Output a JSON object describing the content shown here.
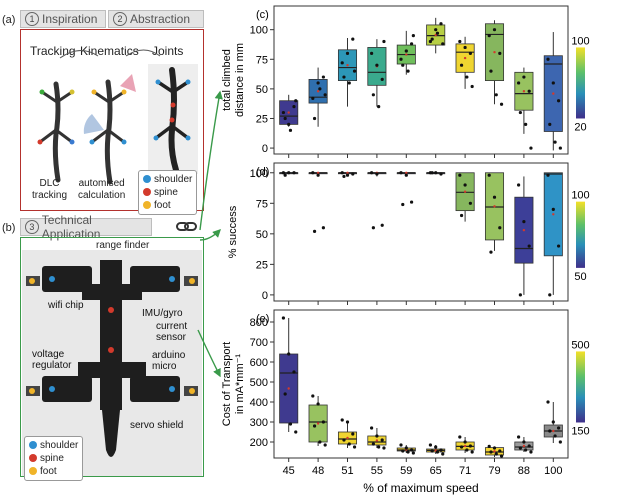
{
  "colors": {
    "shoulder": "#2f8fd0",
    "spine": "#d33a2c",
    "foot": "#f0b429",
    "frame_red": "#b3312d",
    "frame_green": "#3a9a4a",
    "palette": [
      "#3f3a8f",
      "#2f6fae",
      "#2c97b8",
      "#3aaa8d",
      "#6fbf5c",
      "#b7cf45",
      "#efd531",
      "#86b65e",
      "#98c260",
      "#3d66b0",
      "#2f93c6"
    ]
  },
  "left": {
    "panel_a": "(a)",
    "panel_b": "(b)",
    "step1_num": "1",
    "step1": "Inspiration",
    "step2_num": "2",
    "step2": "Abstraction",
    "step3_num": "3",
    "step3": "Technical Application",
    "tracking": "Tracking",
    "kinematics": "Kinematics",
    "joints": "Joints",
    "dlc": "DLC\ntracking",
    "automised": "automised\ncalculation",
    "legend_a": [
      "shoulder",
      "spine",
      "foot"
    ],
    "legend_b": [
      "shoulder",
      "spine",
      "foot"
    ],
    "range_finder": "range finder",
    "wifi_chip": "wifi chip",
    "imu": "IMU/gyro",
    "current_sensor": "current\nsensor",
    "voltage_regulator": "voltage\nregulator",
    "arduino": "arduino\nmicro",
    "servo_shield": "servo shield"
  },
  "x_label": "% of maximum speed",
  "chart_data": [
    {
      "panel": "(c)",
      "type": "box",
      "ylabel": "total climbed\ndistance in mm",
      "categories": [
        "45",
        "48",
        "51",
        "55",
        "59",
        "65",
        "71",
        "79",
        "88",
        "100"
      ],
      "ylim": [
        -5,
        120
      ],
      "yticks": [
        0,
        25,
        50,
        75,
        100
      ],
      "boxes": [
        {
          "q1": 20,
          "med": 27,
          "q3": 40,
          "wlo": 18,
          "whi": 45
        },
        {
          "q1": 38,
          "med": 43,
          "q3": 58,
          "wlo": 18,
          "whi": 68
        },
        {
          "q1": 57,
          "med": 68,
          "q3": 83,
          "wlo": 35,
          "whi": 93
        },
        {
          "q1": 53,
          "med": 64,
          "q3": 85,
          "wlo": 35,
          "whi": 92
        },
        {
          "q1": 71,
          "med": 79,
          "q3": 87,
          "wlo": 62,
          "whi": 99
        },
        {
          "q1": 87,
          "med": 95,
          "q3": 104,
          "wlo": 80,
          "whi": 110
        },
        {
          "q1": 64,
          "med": 81,
          "q3": 88,
          "wlo": 50,
          "whi": 94
        },
        {
          "q1": 57,
          "med": 96,
          "q3": 105,
          "wlo": 37,
          "whi": 108
        },
        {
          "q1": 32,
          "med": 46,
          "q3": 64,
          "wlo": 12,
          "whi": 68
        },
        {
          "q1": 14,
          "med": 71,
          "q3": 78,
          "wlo": -2,
          "whi": 98
        }
      ],
      "points": [
        [
          30,
          20,
          35,
          25,
          15,
          40
        ],
        [
          42,
          55,
          60,
          25,
          50,
          45
        ],
        [
          72,
          80,
          92,
          60,
          55,
          65
        ],
        [
          80,
          70,
          58,
          45,
          35,
          90
        ],
        [
          75,
          82,
          88,
          70,
          65,
          95
        ],
        [
          90,
          100,
          105,
          92,
          97,
          88
        ],
        [
          90,
          85,
          80,
          70,
          60,
          52
        ],
        [
          95,
          100,
          80,
          65,
          45,
          37
        ],
        [
          55,
          60,
          48,
          30,
          20,
          0
        ],
        [
          75,
          55,
          40,
          20,
          5,
          0
        ]
      ],
      "colorbar": {
        "max": "100",
        "min": "20"
      }
    },
    {
      "panel": "(d)",
      "type": "box",
      "ylabel": "% success",
      "categories": [
        "45",
        "48",
        "51",
        "55",
        "59",
        "65",
        "71",
        "79",
        "88",
        "100"
      ],
      "ylim": [
        -5,
        108
      ],
      "yticks": [
        0,
        25,
        50,
        75,
        100
      ],
      "boxes": [
        {
          "q1": 100,
          "med": 100,
          "q3": 100,
          "wlo": 100,
          "whi": 100
        },
        {
          "q1": 100,
          "med": 100,
          "q3": 100,
          "wlo": 98,
          "whi": 100
        },
        {
          "q1": 100,
          "med": 100,
          "q3": 100,
          "wlo": 97,
          "whi": 100
        },
        {
          "q1": 100,
          "med": 100,
          "q3": 100,
          "wlo": 97,
          "whi": 100
        },
        {
          "q1": 100,
          "med": 100,
          "q3": 100,
          "wlo": 100,
          "whi": 100
        },
        {
          "q1": 100,
          "med": 100,
          "q3": 100,
          "wlo": 100,
          "whi": 100
        },
        {
          "q1": 69,
          "med": 84,
          "q3": 100,
          "wlo": 60,
          "whi": 100
        },
        {
          "q1": 45,
          "med": 72,
          "q3": 100,
          "wlo": 36,
          "whi": 100
        },
        {
          "q1": 26,
          "med": 38,
          "q3": 80,
          "wlo": 0,
          "whi": 97
        },
        {
          "q1": 32,
          "med": 99,
          "q3": 100,
          "wlo": 0,
          "whi": 100
        }
      ],
      "points": [
        [
          100,
          100,
          100,
          98
        ],
        [
          100,
          98,
          55,
          52
        ],
        [
          100,
          98,
          99,
          97
        ],
        [
          100,
          99,
          57,
          55
        ],
        [
          100,
          98,
          76,
          74
        ],
        [
          100,
          100,
          99,
          100
        ],
        [
          98,
          90,
          75,
          65
        ],
        [
          98,
          80,
          55,
          35
        ],
        [
          90,
          60,
          40,
          0
        ],
        [
          98,
          70,
          40,
          0
        ]
      ],
      "colorbar": {
        "max": "100",
        "min": "50"
      }
    },
    {
      "panel": "(e)",
      "type": "box",
      "ylabel": "Cost of Transport\nin mA*mm⁻¹",
      "categories": [
        "45",
        "48",
        "51",
        "55",
        "59",
        "65",
        "71",
        "79",
        "88",
        "100"
      ],
      "ylim": [
        120,
        860
      ],
      "yticks": [
        200,
        300,
        400,
        500,
        600,
        700,
        800
      ],
      "boxes": [
        {
          "q1": 295,
          "med": 545,
          "q3": 640,
          "wlo": 250,
          "whi": 820
        },
        {
          "q1": 200,
          "med": 300,
          "q3": 385,
          "wlo": 180,
          "whi": 430
        },
        {
          "q1": 190,
          "med": 215,
          "q3": 250,
          "wlo": 170,
          "whi": 305
        },
        {
          "q1": 185,
          "med": 200,
          "q3": 230,
          "wlo": 170,
          "whi": 270
        },
        {
          "q1": 155,
          "med": 160,
          "q3": 170,
          "wlo": 145,
          "whi": 185
        },
        {
          "q1": 150,
          "med": 158,
          "q3": 165,
          "wlo": 140,
          "whi": 185
        },
        {
          "q1": 160,
          "med": 178,
          "q3": 200,
          "wlo": 145,
          "whi": 225
        },
        {
          "q1": 135,
          "med": 150,
          "q3": 172,
          "wlo": 125,
          "whi": 178
        },
        {
          "q1": 160,
          "med": 175,
          "q3": 200,
          "wlo": 150,
          "whi": 225
        },
        {
          "q1": 225,
          "med": 255,
          "q3": 285,
          "wlo": 195,
          "whi": 400
        }
      ],
      "points": [
        [
          820,
          640,
          550,
          440,
          290,
          250
        ],
        [
          430,
          390,
          300,
          280,
          200,
          185
        ],
        [
          310,
          300,
          240,
          210,
          190,
          175
        ],
        [
          270,
          230,
          210,
          190,
          175,
          170
        ],
        [
          185,
          170,
          160,
          155,
          150,
          145
        ],
        [
          185,
          175,
          160,
          155,
          150,
          140
        ],
        [
          225,
          200,
          180,
          175,
          160,
          150
        ],
        [
          178,
          170,
          155,
          150,
          140,
          130
        ],
        [
          225,
          200,
          180,
          170,
          160,
          150
        ],
        [
          400,
          300,
          270,
          255,
          230,
          200
        ]
      ],
      "colorbar": {
        "max": "500",
        "min": "150"
      }
    }
  ]
}
